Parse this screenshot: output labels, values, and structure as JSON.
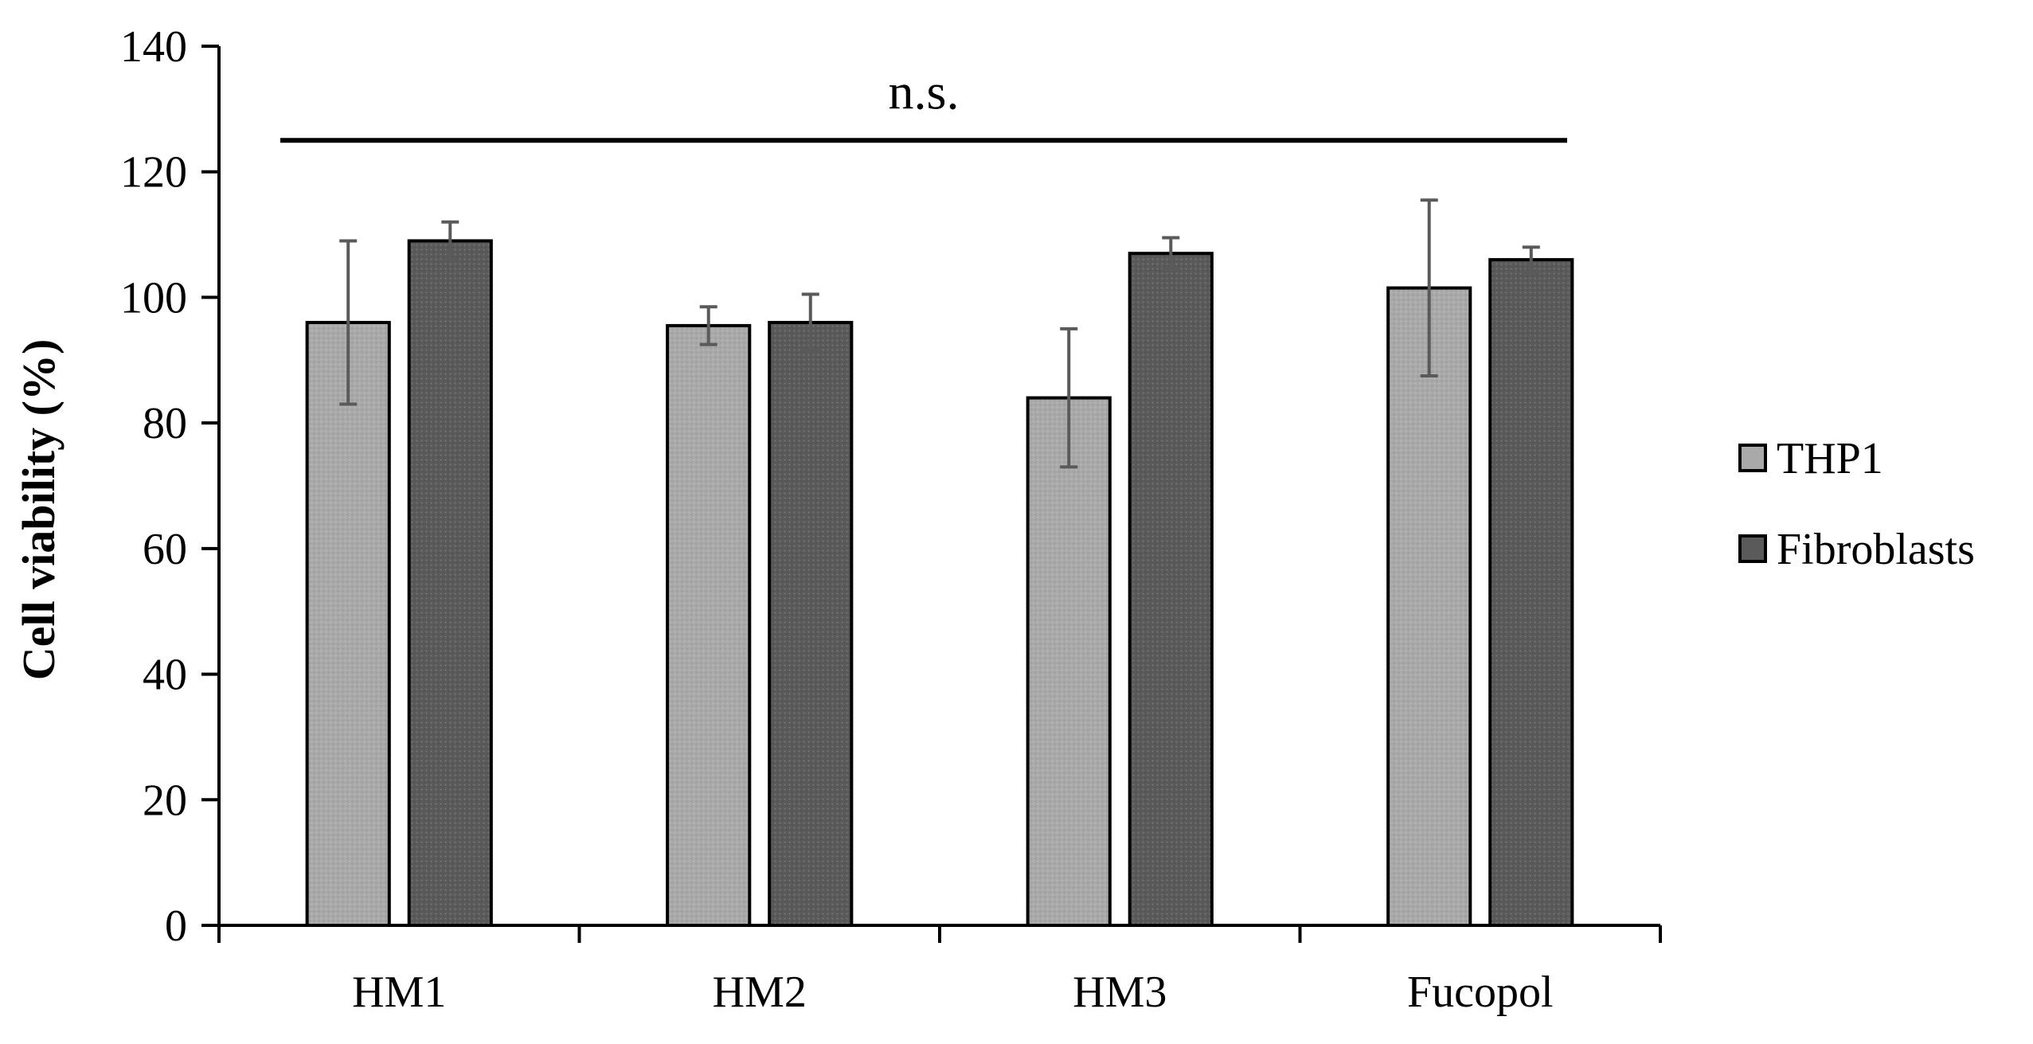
{
  "chart_data": {
    "type": "bar",
    "title": "",
    "xlabel": "",
    "ylabel": "Cell viability  (%)",
    "ylim": [
      0,
      140
    ],
    "yticks": [
      0,
      20,
      40,
      60,
      80,
      100,
      120,
      140
    ],
    "categories": [
      "HM1",
      "HM2",
      "HM3",
      "Fucopol"
    ],
    "series": [
      {
        "name": "THP1",
        "color": "#a9a9a9",
        "values": [
          96,
          95.5,
          84,
          101.5
        ],
        "errors": [
          13,
          3,
          11,
          14
        ]
      },
      {
        "name": "Fibroblasts",
        "color": "#5a5a5a",
        "values": [
          109,
          96,
          107,
          106
        ],
        "errors": [
          3,
          4.5,
          2.5,
          2
        ]
      }
    ],
    "annotation": {
      "text": "n.s.",
      "y": 125
    },
    "legend_position": "right",
    "grid": false
  }
}
